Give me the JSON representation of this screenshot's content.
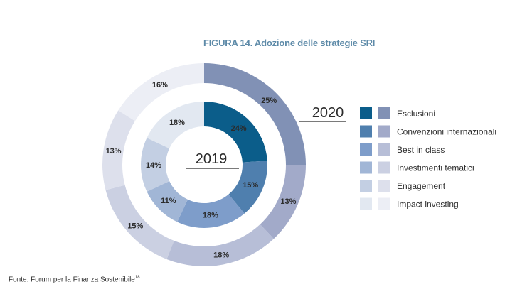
{
  "title": "FIGURA 14. Adozione delle strategie SRI",
  "source": {
    "text": "Fonte: Forum per la Finanza Sostenibile",
    "footnote": "18"
  },
  "chart_data": {
    "type": "pie",
    "subtype": "nested-donut",
    "categories": [
      "Esclusioni",
      "Convenzioni internazionali",
      "Best in class",
      "Investimenti tematici",
      "Engagement",
      "Impact investing"
    ],
    "series": [
      {
        "name": "2019",
        "ring": "inner",
        "values": [
          24,
          15,
          18,
          11,
          14,
          18
        ],
        "labels": [
          "24%",
          "15%",
          "18%",
          "11%",
          "14%",
          "18%"
        ],
        "colors": [
          "#0b5d8a",
          "#4f7fae",
          "#7e9dca",
          "#a1b6d6",
          "#c3cfe3",
          "#e2e8f1"
        ]
      },
      {
        "name": "2020",
        "ring": "outer",
        "values": [
          25,
          13,
          18,
          15,
          13,
          16
        ],
        "labels": [
          "25%",
          "13%",
          "18%",
          "15%",
          "13%",
          "16%"
        ],
        "colors": [
          "#8191b5",
          "#a2aac9",
          "#b7bed7",
          "#cbd0e2",
          "#dde0ec",
          "#eceef5"
        ]
      }
    ],
    "legend": {
      "placement": "right",
      "entries": [
        "Esclusioni",
        "Convenzioni internazionali",
        "Best in class",
        "Investimenti tematici",
        "Engagement",
        "Impact investing"
      ]
    },
    "center_label": "2019",
    "callout_label": "2020"
  }
}
